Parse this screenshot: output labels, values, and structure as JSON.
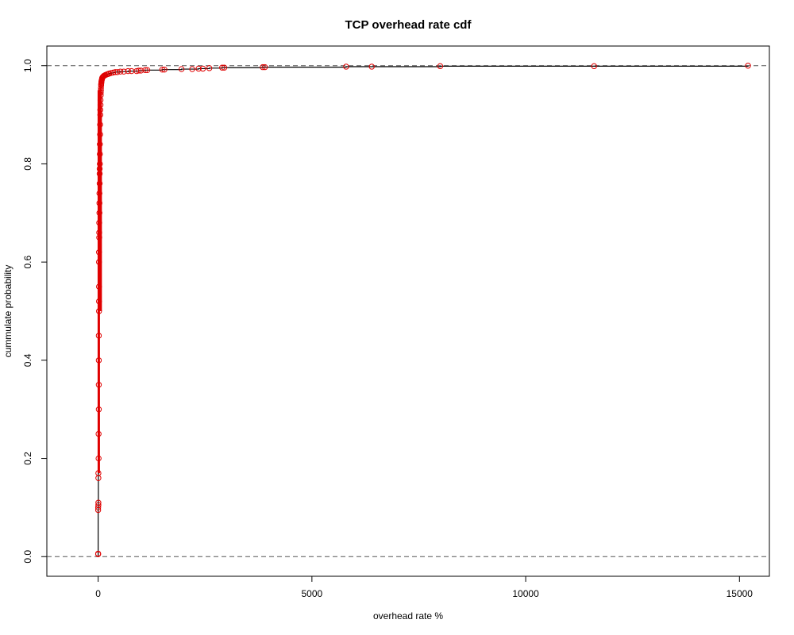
{
  "chart_data": {
    "type": "scatter",
    "title": "TCP overhead rate cdf",
    "xlabel": "overhead rate %",
    "ylabel": "cummulate probability",
    "xlim": [
      -1200,
      15700
    ],
    "ylim": [
      -0.04,
      1.04
    ],
    "x_ticks": [
      0,
      5000,
      10000,
      15000
    ],
    "x_tick_labels": [
      "0",
      "5000",
      "10000",
      "15000"
    ],
    "y_ticks": [
      0.0,
      0.2,
      0.4,
      0.6,
      0.8,
      1.0
    ],
    "y_tick_labels": [
      "0.0",
      "0.2",
      "0.4",
      "0.6",
      "0.8",
      "1.0"
    ],
    "reference_lines": [
      0,
      1
    ],
    "grid": false,
    "legend": "none",
    "step_line_color": "#000000",
    "point_color": "#e00000",
    "series": [
      {
        "x": [
          0,
          0,
          0,
          0,
          5,
          5,
          5,
          5,
          10,
          10,
          15,
          15,
          15,
          15,
          20,
          20,
          20,
          20,
          20,
          25,
          25,
          25,
          30,
          30,
          30,
          35,
          35,
          35,
          40,
          40,
          40,
          45,
          45,
          50,
          50,
          55,
          55,
          60,
          60,
          65,
          65,
          70,
          70,
          75,
          75,
          80,
          85,
          90,
          95,
          100,
          110,
          120,
          130,
          150,
          170,
          200,
          230,
          260,
          300,
          350,
          400,
          450,
          520,
          600,
          700,
          780,
          900,
          950,
          1000,
          1100,
          1150,
          1500,
          1550,
          1950,
          2200,
          2350,
          2450,
          2600,
          2900,
          2950,
          3850,
          3900,
          5800,
          6400,
          8000,
          11600,
          15200
        ],
        "y": [
          0.005,
          0.006,
          0.095,
          0.1,
          0.105,
          0.11,
          0.16,
          0.17,
          0.2,
          0.25,
          0.3,
          0.35,
          0.4,
          0.45,
          0.5,
          0.52,
          0.55,
          0.6,
          0.62,
          0.65,
          0.66,
          0.68,
          0.7,
          0.72,
          0.74,
          0.76,
          0.78,
          0.79,
          0.8,
          0.82,
          0.84,
          0.86,
          0.88,
          0.9,
          0.91,
          0.92,
          0.93,
          0.94,
          0.945,
          0.95,
          0.955,
          0.96,
          0.962,
          0.965,
          0.967,
          0.969,
          0.971,
          0.973,
          0.975,
          0.976,
          0.977,
          0.978,
          0.979,
          0.98,
          0.981,
          0.982,
          0.983,
          0.984,
          0.985,
          0.986,
          0.987,
          0.987,
          0.988,
          0.988,
          0.989,
          0.989,
          0.989,
          0.99,
          0.99,
          0.991,
          0.991,
          0.992,
          0.992,
          0.993,
          0.993,
          0.994,
          0.994,
          0.995,
          0.996,
          0.996,
          0.997,
          0.997,
          0.998,
          0.998,
          0.999,
          0.999,
          1.0
        ]
      }
    ]
  }
}
